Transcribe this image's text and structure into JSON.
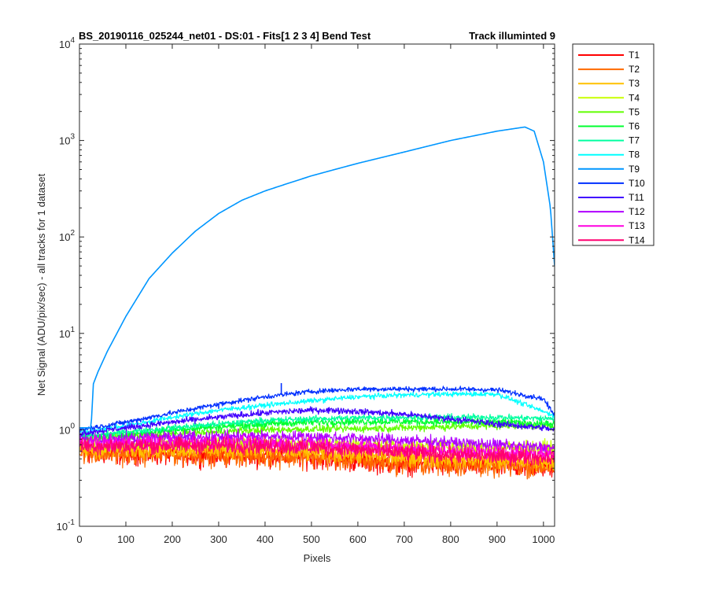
{
  "chart_data": {
    "type": "line",
    "title": "BS_20190116_025244_net01 - DS:01 - Fits[1  2  3  4]   Bend Test",
    "subtitle": "Track illuminted 9",
    "xlabel": "Pixels",
    "ylabel": "Net Signal (ADU/pix/sec) - all tracks for 1 dataset",
    "xlim": [
      0,
      1024
    ],
    "ylim": [
      0.1,
      10000
    ],
    "yscale": "log",
    "grid": false,
    "legend_position": "outside-top-right",
    "x_ticks": [
      0,
      100,
      200,
      300,
      400,
      500,
      600,
      700,
      800,
      900,
      1000
    ],
    "x_tick_labels": [
      "0",
      "100",
      "200",
      "300",
      "400",
      "500",
      "600",
      "700",
      "800",
      "900",
      "1000"
    ],
    "y_ticks": [
      0.1,
      1,
      10,
      100,
      1000,
      10000
    ],
    "y_tick_labels": [
      {
        "base": "10",
        "exp": "-1"
      },
      {
        "base": "10",
        "exp": "0"
      },
      {
        "base": "10",
        "exp": "1"
      },
      {
        "base": "10",
        "exp": "2"
      },
      {
        "base": "10",
        "exp": "3"
      },
      {
        "base": "10",
        "exp": "4"
      }
    ],
    "series": [
      {
        "name": "T1",
        "color": "#ff0000",
        "x": [
          0,
          100,
          200,
          300,
          400,
          500,
          600,
          700,
          800,
          900,
          1024
        ],
        "y": [
          0.58,
          0.57,
          0.56,
          0.55,
          0.54,
          0.52,
          0.48,
          0.45,
          0.43,
          0.42,
          0.42
        ],
        "noise": 0.18
      },
      {
        "name": "T2",
        "color": "#ff6a00",
        "x": [
          0,
          100,
          200,
          300,
          400,
          500,
          600,
          700,
          800,
          900,
          1024
        ],
        "y": [
          0.57,
          0.56,
          0.56,
          0.55,
          0.54,
          0.52,
          0.48,
          0.45,
          0.43,
          0.42,
          0.42
        ],
        "noise": 0.18
      },
      {
        "name": "T3",
        "color": "#ffc000",
        "x": [
          0,
          100,
          200,
          300,
          400,
          500,
          600,
          700,
          800,
          900,
          1024
        ],
        "y": [
          0.62,
          0.63,
          0.63,
          0.62,
          0.61,
          0.58,
          0.55,
          0.52,
          0.5,
          0.48,
          0.47
        ],
        "noise": 0.14
      },
      {
        "name": "T4",
        "color": "#c8ff00",
        "x": [
          0,
          100,
          200,
          300,
          400,
          500,
          600,
          700,
          800,
          900,
          1024
        ],
        "y": [
          0.68,
          0.7,
          0.72,
          0.73,
          0.73,
          0.72,
          0.7,
          0.68,
          0.66,
          0.65,
          0.64
        ],
        "noise": 0.12
      },
      {
        "name": "T5",
        "color": "#60ff00",
        "x": [
          0,
          100,
          200,
          300,
          400,
          500,
          600,
          700,
          800,
          900,
          1024
        ],
        "y": [
          0.8,
          0.85,
          0.9,
          0.95,
          1.0,
          1.02,
          1.03,
          1.05,
          1.08,
          1.1,
          1.1
        ],
        "noise": 0.06
      },
      {
        "name": "T6",
        "color": "#00ff30",
        "x": [
          0,
          100,
          200,
          300,
          400,
          500,
          600,
          700,
          800,
          900,
          1024
        ],
        "y": [
          0.82,
          0.9,
          1.0,
          1.08,
          1.15,
          1.2,
          1.22,
          1.22,
          1.2,
          1.2,
          1.15
        ],
        "noise": 0.06
      },
      {
        "name": "T7",
        "color": "#00ffa0",
        "x": [
          0,
          100,
          200,
          300,
          400,
          500,
          600,
          700,
          800,
          900,
          1024
        ],
        "y": [
          0.85,
          0.95,
          1.05,
          1.15,
          1.25,
          1.3,
          1.33,
          1.35,
          1.35,
          1.35,
          1.3
        ],
        "noise": 0.05
      },
      {
        "name": "T8",
        "color": "#00ffff",
        "x": [
          0,
          100,
          200,
          300,
          400,
          500,
          600,
          700,
          800,
          900,
          1024
        ],
        "y": [
          0.95,
          1.1,
          1.35,
          1.6,
          1.8,
          2.0,
          2.2,
          2.3,
          2.35,
          2.35,
          1.4
        ],
        "noise": 0.04
      },
      {
        "name": "T9",
        "color": "#0096ff",
        "x": [
          0,
          25,
          30,
          40,
          60,
          100,
          150,
          200,
          250,
          300,
          350,
          400,
          450,
          500,
          550,
          600,
          700,
          800,
          900,
          960,
          980,
          1000,
          1015,
          1024
        ],
        "y": [
          1.05,
          1.05,
          3,
          4,
          6.5,
          15,
          37,
          68,
          115,
          175,
          240,
          300,
          360,
          430,
          500,
          580,
          760,
          1000,
          1250,
          1380,
          1250,
          600,
          200,
          50
        ],
        "noise": 0.0
      },
      {
        "name": "T10",
        "color": "#0030ff",
        "x": [
          0,
          100,
          200,
          300,
          400,
          500,
          600,
          700,
          800,
          900,
          1000,
          1024
        ],
        "y": [
          1.0,
          1.2,
          1.5,
          1.85,
          2.2,
          2.5,
          2.65,
          2.65,
          2.65,
          2.6,
          2.1,
          1.4
        ],
        "noise": 0.04
      },
      {
        "name": "T11",
        "color": "#4000ff",
        "x": [
          0,
          100,
          200,
          300,
          400,
          500,
          550,
          600,
          700,
          800,
          900,
          1000,
          1024
        ],
        "y": [
          0.92,
          1.05,
          1.2,
          1.35,
          1.5,
          1.6,
          1.6,
          1.55,
          1.45,
          1.3,
          1.15,
          1.05,
          1.0
        ],
        "noise": 0.05
      },
      {
        "name": "T12",
        "color": "#b000ff",
        "x": [
          0,
          100,
          200,
          300,
          400,
          500,
          600,
          700,
          800,
          900,
          1024
        ],
        "y": [
          0.8,
          0.82,
          0.84,
          0.85,
          0.86,
          0.85,
          0.82,
          0.78,
          0.74,
          0.7,
          0.65
        ],
        "noise": 0.09
      },
      {
        "name": "T13",
        "color": "#ff00e0",
        "x": [
          0,
          100,
          200,
          300,
          400,
          500,
          600,
          700,
          800,
          900,
          1024
        ],
        "y": [
          0.72,
          0.73,
          0.74,
          0.74,
          0.73,
          0.71,
          0.67,
          0.63,
          0.6,
          0.58,
          0.56
        ],
        "noise": 0.12
      },
      {
        "name": "T14",
        "color": "#ff0070",
        "x": [
          0,
          100,
          200,
          300,
          400,
          500,
          600,
          700,
          800,
          900,
          1024
        ],
        "y": [
          0.68,
          0.68,
          0.69,
          0.69,
          0.68,
          0.66,
          0.62,
          0.58,
          0.55,
          0.53,
          0.52
        ],
        "noise": 0.13
      }
    ],
    "annotations": [
      {
        "series": "T10",
        "x": 435,
        "y": 3.05,
        "kind": "spike"
      },
      {
        "series": "T10",
        "x": 300,
        "y": 1.65,
        "kind": "spike"
      }
    ]
  }
}
